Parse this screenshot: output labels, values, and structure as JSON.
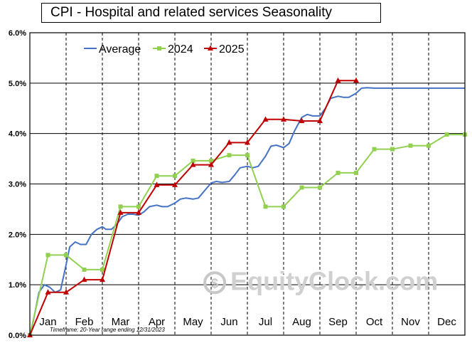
{
  "chart_data": {
    "type": "line",
    "title": "CPI - Hospital and related services Seasonality",
    "footnote": "Timeframe: 20-Year range ending 12/31/2023",
    "watermark": "EquityClock.com",
    "ylim": [
      0,
      6
    ],
    "y_ticks": [
      "0.0%",
      "1.0%",
      "2.0%",
      "3.0%",
      "4.0%",
      "5.0%",
      "6.0%"
    ],
    "grid": true,
    "legend_position": "top-left",
    "months": [
      "Jan",
      "Feb",
      "Mar",
      "Apr",
      "May",
      "Jun",
      "Jul",
      "Aug",
      "Sep",
      "Oct",
      "Nov",
      "Dec"
    ],
    "x_range": [
      0,
      12
    ],
    "series": [
      {
        "name": "Average",
        "color": "#4472c4",
        "marker": "none",
        "x": [
          0,
          0.1,
          0.25,
          0.4,
          0.55,
          0.7,
          0.85,
          1.0,
          1.1,
          1.25,
          1.4,
          1.55,
          1.7,
          1.85,
          2.0,
          2.1,
          2.25,
          2.4,
          2.55,
          2.7,
          2.85,
          3.0,
          3.15,
          3.3,
          3.5,
          3.65,
          3.8,
          4.0,
          4.15,
          4.3,
          4.5,
          4.65,
          4.8,
          5.0,
          5.15,
          5.3,
          5.5,
          5.65,
          5.8,
          6.0,
          6.15,
          6.3,
          6.5,
          6.65,
          6.8,
          7.0,
          7.15,
          7.3,
          7.5,
          7.65,
          7.8,
          8.0,
          8.15,
          8.3,
          8.5,
          8.65,
          8.8,
          9.0,
          9.15,
          9.3,
          9.5,
          9.65,
          9.8,
          10.0,
          10.15,
          10.3,
          10.5,
          10.65,
          10.8,
          11.0,
          11.15,
          11.3,
          11.5,
          11.65,
          11.8,
          12.0
        ],
        "y": [
          0.0,
          0.3,
          0.85,
          1.0,
          0.95,
          0.85,
          0.9,
          1.4,
          1.75,
          1.85,
          1.8,
          1.8,
          2.0,
          2.1,
          2.15,
          2.1,
          2.1,
          2.2,
          2.35,
          2.4,
          2.4,
          2.38,
          2.45,
          2.55,
          2.58,
          2.55,
          2.55,
          2.62,
          2.7,
          2.72,
          2.7,
          2.72,
          2.85,
          3.02,
          3.05,
          3.03,
          3.05,
          3.18,
          3.32,
          3.35,
          3.32,
          3.35,
          3.55,
          3.75,
          3.77,
          3.72,
          3.8,
          4.05,
          4.32,
          4.38,
          4.35,
          4.35,
          4.5,
          4.7,
          4.74,
          4.72,
          4.72,
          4.8,
          4.9,
          4.91,
          4.9,
          4.9,
          4.9,
          4.9,
          4.9,
          4.9,
          4.9,
          4.9,
          4.9,
          4.9,
          4.9,
          4.9,
          4.9,
          4.9,
          4.9,
          4.9
        ]
      },
      {
        "name": "2024",
        "color": "#92d050",
        "marker": "square",
        "x": [
          0.0,
          0.5,
          1.0,
          1.5,
          2.0,
          2.5,
          3.0,
          3.5,
          4.0,
          4.5,
          5.0,
          5.5,
          6.0,
          6.5,
          7.0,
          7.5,
          8.0,
          8.5,
          9.0,
          9.5,
          10.0,
          10.5,
          11.0,
          11.5,
          12.0
        ],
        "y": [
          0.0,
          1.59,
          1.59,
          1.3,
          1.3,
          2.55,
          2.55,
          3.16,
          3.16,
          3.46,
          3.46,
          3.57,
          3.57,
          2.55,
          2.55,
          2.93,
          2.93,
          3.22,
          3.22,
          3.69,
          3.69,
          3.76,
          3.76,
          3.98,
          3.98
        ]
      },
      {
        "name": "2025",
        "color": "#c00000",
        "marker": "triangle",
        "x": [
          0.0,
          0.5,
          1.0,
          1.5,
          2.0,
          2.5,
          3.0,
          3.5,
          4.0,
          4.5,
          5.0,
          5.5,
          6.0,
          6.5,
          7.0,
          7.5,
          8.0,
          8.5,
          9.0
        ],
        "y": [
          0.0,
          0.85,
          0.85,
          1.1,
          1.1,
          2.43,
          2.43,
          2.98,
          2.98,
          3.38,
          3.38,
          3.82,
          3.82,
          4.28,
          4.28,
          4.25,
          4.25,
          5.05,
          5.05
        ]
      }
    ]
  }
}
